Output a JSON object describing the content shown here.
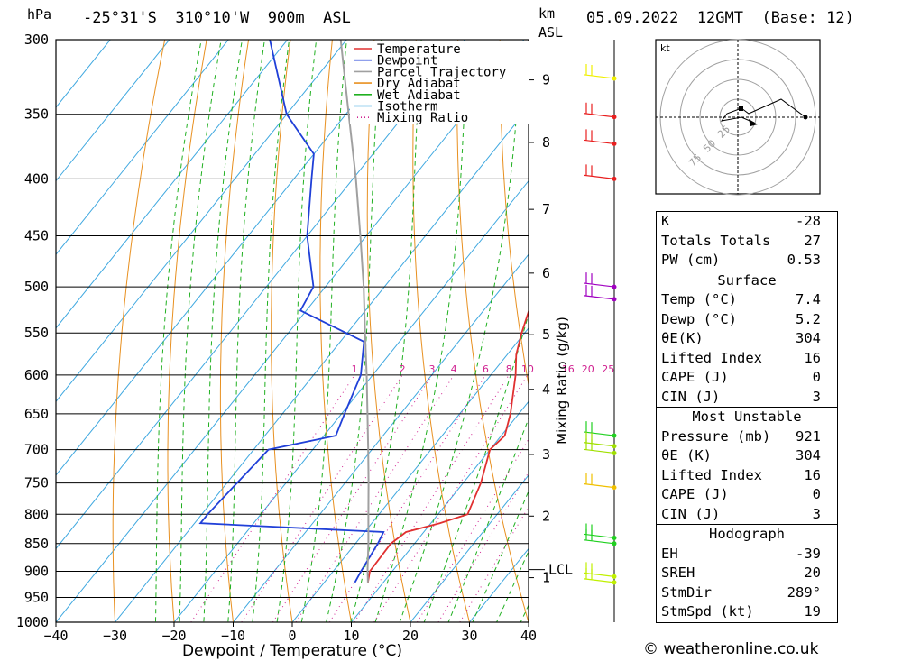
{
  "header": {
    "location": "-25°31'S  310°10'W  900m  ASL",
    "datetime": "05.09.2022  12GMT  (Base: 12)",
    "hpa_unit": "hPa",
    "km_unit": "km",
    "asl_unit": "ASL"
  },
  "chart_data": {
    "type": "line",
    "subtype": "skew-T log-P diagram",
    "xlabel": "Dewpoint / Temperature (°C)",
    "ylabel_left": "hPa",
    "mixing_ratio_label": "Mixing Ratio (g/kg)",
    "xlim": [
      -40,
      40
    ],
    "ylim_hpa": [
      1000,
      300
    ],
    "x_ticks": [
      -40,
      -30,
      -20,
      -10,
      0,
      10,
      20,
      30,
      40
    ],
    "p_ticks": [
      300,
      350,
      400,
      450,
      500,
      550,
      600,
      650,
      700,
      750,
      800,
      850,
      900,
      950,
      1000
    ],
    "km_ticks": [
      {
        "label": "1",
        "p": 912
      },
      {
        "label": "2",
        "p": 803
      },
      {
        "label": "3",
        "p": 707
      },
      {
        "label": "4",
        "p": 618
      },
      {
        "label": "5",
        "p": 552
      },
      {
        "label": "6",
        "p": 486
      },
      {
        "label": "7",
        "p": 426
      },
      {
        "label": "8",
        "p": 371
      },
      {
        "label": "9",
        "p": 326
      }
    ],
    "lcl": {
      "label": "LCL",
      "p": 897
    },
    "mixing_ratio_labels": [
      "1",
      "2",
      "3",
      "4",
      "6",
      "8",
      "10",
      "16",
      "20",
      "25"
    ],
    "legend": [
      "Temperature",
      "Dewpoint",
      "Parcel Trajectory",
      "Dry Adiabat",
      "Wet Adiabat",
      "Isotherm",
      "Mixing Ratio"
    ],
    "legend_position": "top-right",
    "series": [
      {
        "name": "Temperature",
        "color": "#e03030",
        "points": [
          [
            921,
            7.4
          ],
          [
            900,
            6.2
          ],
          [
            850,
            6.0
          ],
          [
            830,
            7.0
          ],
          [
            815,
            11.5
          ],
          [
            800,
            15.0
          ],
          [
            750,
            13.0
          ],
          [
            700,
            10.0
          ],
          [
            680,
            10.6
          ],
          [
            650,
            8.6
          ],
          [
            600,
            4.2
          ],
          [
            575,
            1.5
          ],
          [
            550,
            -0.5
          ],
          [
            520,
            -2.7
          ],
          [
            500,
            -5.5
          ],
          [
            450,
            -11.5
          ],
          [
            400,
            -18.5
          ],
          [
            370,
            -23.5
          ],
          [
            350,
            -27.0
          ],
          [
            330,
            -31.0
          ],
          [
            315,
            -32.5
          ],
          [
            300,
            -34.0
          ]
        ]
      },
      {
        "name": "Dewpoint",
        "color": "#2040d8",
        "points": [
          [
            921,
            5.2
          ],
          [
            900,
            4.7
          ],
          [
            850,
            3.8
          ],
          [
            830,
            3.2
          ],
          [
            815,
            -29.0
          ],
          [
            800,
            -29.0
          ],
          [
            700,
            -27.5
          ],
          [
            680,
            -18.0
          ],
          [
            650,
            -19.5
          ],
          [
            600,
            -22.0
          ],
          [
            560,
            -26.0
          ],
          [
            525,
            -41.0
          ],
          [
            500,
            -42.0
          ],
          [
            450,
            -50.0
          ],
          [
            400,
            -57.0
          ],
          [
            380,
            -60.0
          ],
          [
            350,
            -70.0
          ],
          [
            300,
            -83.0
          ]
        ]
      },
      {
        "name": "Parcel Trajectory",
        "color": "#a0a0a0",
        "points": [
          [
            921,
            7.4
          ],
          [
            897,
            5.6
          ],
          [
            850,
            2.2
          ],
          [
            800,
            -1.8
          ],
          [
            750,
            -6.0
          ],
          [
            700,
            -10.6
          ],
          [
            650,
            -15.6
          ],
          [
            600,
            -21.0
          ],
          [
            550,
            -27.0
          ],
          [
            500,
            -33.5
          ],
          [
            450,
            -41.0
          ],
          [
            400,
            -49.5
          ],
          [
            350,
            -59.5
          ],
          [
            300,
            -71.0
          ]
        ]
      }
    ],
    "wind_barbs": [
      {
        "p": 325,
        "color": "#f0f000"
      },
      {
        "p": 352,
        "color": "#e82020"
      },
      {
        "p": 372,
        "color": "#e82020"
      },
      {
        "p": 400,
        "color": "#e82020"
      },
      {
        "p": 500,
        "color": "#a000c0"
      },
      {
        "p": 513,
        "color": "#a000c0"
      },
      {
        "p": 680,
        "color": "#20d020"
      },
      {
        "p": 695,
        "color": "#a0e000"
      },
      {
        "p": 705,
        "color": "#a0e000"
      },
      {
        "p": 757,
        "color": "#f0c000"
      },
      {
        "p": 840,
        "color": "#20d020"
      },
      {
        "p": 850,
        "color": "#20d020"
      },
      {
        "p": 910,
        "color": "#c0f000"
      },
      {
        "p": 921,
        "color": "#c0f000"
      }
    ],
    "hodograph_ring_labels": [
      "25",
      "50",
      "75"
    ],
    "hodograph_unit": "kt"
  },
  "indices": {
    "top": [
      {
        "label": "K",
        "value": "-28"
      },
      {
        "label": "Totals Totals",
        "value": "27"
      },
      {
        "label": "PW (cm)",
        "value": "0.53"
      }
    ],
    "surface_title": "Surface",
    "surface": [
      {
        "label": "Temp (°C)",
        "value": "7.4"
      },
      {
        "label": "Dewp (°C)",
        "value": "5.2"
      },
      {
        "label": "θE(K)",
        "value": "304"
      },
      {
        "label": "Lifted Index",
        "value": "16"
      },
      {
        "label": "CAPE (J)",
        "value": "0"
      },
      {
        "label": "CIN (J)",
        "value": "3"
      }
    ],
    "mu_title": "Most Unstable",
    "mu": [
      {
        "label": "Pressure (mb)",
        "value": "921"
      },
      {
        "label": "θE (K)",
        "value": "304"
      },
      {
        "label": "Lifted Index",
        "value": "16"
      },
      {
        "label": "CAPE (J)",
        "value": "0"
      },
      {
        "label": "CIN (J)",
        "value": "3"
      }
    ],
    "hodo_title": "Hodograph",
    "hodo": [
      {
        "label": "EH",
        "value": "-39"
      },
      {
        "label": "SREH",
        "value": "20"
      },
      {
        "label": "StmDir",
        "value": "289°"
      },
      {
        "label": "StmSpd (kt)",
        "value": "19"
      }
    ]
  },
  "credit": "© weatheronline.co.uk"
}
